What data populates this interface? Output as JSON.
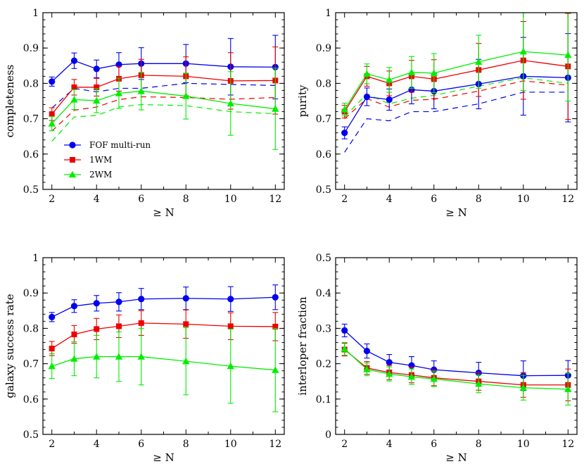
{
  "colors": {
    "fof": "#0000ee",
    "wm1": "#ee0000",
    "wm2": "#00ee00"
  },
  "legend": [
    {
      "name": "FOF multi-run",
      "series": "fof",
      "marker": "circle"
    },
    {
      "name": "1WM",
      "series": "wm1",
      "marker": "square"
    },
    {
      "name": "2WM",
      "series": "wm2",
      "marker": "triangle"
    }
  ],
  "chart_data": [
    {
      "type": "line",
      "title": "",
      "xlabel": "≥ N",
      "ylabel": "completeness",
      "xlim": [
        1.6,
        12.4
      ],
      "ylim": [
        0.5,
        1.0
      ],
      "x_ticks": [
        2,
        4,
        6,
        8,
        10,
        12
      ],
      "y_ticks": [
        0.5,
        0.6,
        0.7,
        0.8,
        0.9,
        1.0
      ],
      "y_tick_labels": [
        "0.5",
        "0.6",
        "0.7",
        "0.8",
        "0.9",
        "1"
      ],
      "x": [
        2,
        3,
        4,
        5,
        6,
        8,
        10,
        12
      ],
      "series": [
        {
          "name": "FOF multi-run",
          "key": "fof",
          "values": [
            0.805,
            0.864,
            0.841,
            0.853,
            0.856,
            0.856,
            0.847,
            0.846
          ],
          "err": [
            0.013,
            0.022,
            0.025,
            0.034,
            0.045,
            0.054,
            0.08,
            0.09
          ]
        },
        {
          "name": "1WM",
          "key": "wm1",
          "values": [
            0.713,
            0.789,
            0.789,
            0.813,
            0.823,
            0.82,
            0.807,
            0.808
          ],
          "err": [
            0.018,
            0.022,
            0.025,
            0.035,
            0.045,
            0.055,
            0.08,
            0.095
          ]
        },
        {
          "name": "2WM",
          "key": "wm2",
          "values": [
            0.686,
            0.754,
            0.751,
            0.772,
            0.778,
            0.764,
            0.743,
            0.728
          ],
          "err": [
            0.02,
            0.028,
            0.034,
            0.043,
            0.053,
            0.065,
            0.09,
            0.115
          ]
        }
      ],
      "dashed": [
        {
          "key": "fof",
          "values": [
            0.73,
            0.786,
            0.776,
            0.786,
            0.786,
            0.8,
            0.797,
            0.794
          ]
        },
        {
          "key": "wm1",
          "values": [
            0.665,
            0.724,
            0.733,
            0.754,
            0.762,
            0.76,
            0.755,
            0.76
          ]
        },
        {
          "key": "wm2",
          "values": [
            0.636,
            0.705,
            0.709,
            0.733,
            0.74,
            0.737,
            0.72,
            0.714
          ]
        }
      ],
      "legend_position": "lower-left"
    },
    {
      "type": "line",
      "title": "",
      "xlabel": "≥ N",
      "ylabel": "purity",
      "xlim": [
        1.6,
        12.4
      ],
      "ylim": [
        0.5,
        1.0
      ],
      "x_ticks": [
        2,
        4,
        6,
        8,
        10,
        12
      ],
      "y_ticks": [
        0.5,
        0.6,
        0.7,
        0.8,
        0.9,
        1.0
      ],
      "y_tick_labels": [
        "0.5",
        "0.6",
        "0.7",
        "0.8",
        "0.9",
        "1"
      ],
      "x": [
        2,
        3,
        4,
        5,
        6,
        8,
        10,
        12
      ],
      "series": [
        {
          "name": "FOF multi-run",
          "key": "fof",
          "values": [
            0.66,
            0.762,
            0.754,
            0.782,
            0.778,
            0.798,
            0.82,
            0.816
          ],
          "err": [
            0.017,
            0.025,
            0.03,
            0.04,
            0.05,
            0.07,
            0.11,
            0.125
          ]
        },
        {
          "name": "1WM",
          "key": "wm1",
          "values": [
            0.72,
            0.82,
            0.8,
            0.82,
            0.812,
            0.838,
            0.865,
            0.848
          ],
          "err": [
            0.018,
            0.028,
            0.035,
            0.045,
            0.055,
            0.075,
            0.11,
            0.15
          ]
        },
        {
          "name": "2WM",
          "key": "wm2",
          "values": [
            0.726,
            0.827,
            0.81,
            0.831,
            0.829,
            0.861,
            0.89,
            0.88
          ],
          "err": [
            0.018,
            0.028,
            0.035,
            0.045,
            0.055,
            0.075,
            0.11,
            0.13
          ]
        }
      ],
      "dashed": [
        {
          "key": "fof",
          "values": [
            0.605,
            0.7,
            0.694,
            0.72,
            0.72,
            0.742,
            0.775,
            0.775
          ]
        },
        {
          "key": "wm1",
          "values": [
            0.7,
            0.757,
            0.733,
            0.752,
            0.755,
            0.778,
            0.807,
            0.795
          ]
        },
        {
          "key": "wm2",
          "values": [
            0.705,
            0.77,
            0.742,
            0.758,
            0.766,
            0.792,
            0.816,
            0.8
          ]
        }
      ]
    },
    {
      "type": "line",
      "title": "",
      "xlabel": "≥ N",
      "ylabel": "galaxy success rate",
      "xlim": [
        1.6,
        12.4
      ],
      "ylim": [
        0.5,
        1.0
      ],
      "x_ticks": [
        2,
        4,
        6,
        8,
        10,
        12
      ],
      "y_ticks": [
        0.5,
        0.6,
        0.7,
        0.8,
        0.9,
        1.0
      ],
      "y_tick_labels": [
        "0.5",
        "0.6",
        "0.7",
        "0.8",
        "0.9",
        "1"
      ],
      "x": [
        2,
        3,
        4,
        5,
        6,
        8,
        10,
        12
      ],
      "series": [
        {
          "name": "FOF multi-run",
          "key": "fof",
          "values": [
            0.832,
            0.863,
            0.871,
            0.875,
            0.883,
            0.885,
            0.883,
            0.888
          ],
          "err": [
            0.013,
            0.018,
            0.022,
            0.026,
            0.03,
            0.032,
            0.035,
            0.035
          ]
        },
        {
          "name": "1WM",
          "key": "wm1",
          "values": [
            0.743,
            0.783,
            0.798,
            0.806,
            0.815,
            0.812,
            0.806,
            0.805
          ],
          "err": [
            0.02,
            0.025,
            0.03,
            0.032,
            0.035,
            0.04,
            0.038,
            0.04
          ]
        },
        {
          "name": "2WM",
          "key": "wm2",
          "values": [
            0.693,
            0.714,
            0.72,
            0.72,
            0.72,
            0.707,
            0.693,
            0.682
          ],
          "err": [
            0.035,
            0.048,
            0.06,
            0.07,
            0.08,
            0.095,
            0.105,
            0.118
          ]
        }
      ]
    },
    {
      "type": "line",
      "title": "",
      "xlabel": "≥ N",
      "ylabel": "interloper fraction",
      "xlim": [
        1.6,
        12.4
      ],
      "ylim": [
        0.0,
        0.5
      ],
      "x_ticks": [
        2,
        4,
        6,
        8,
        10,
        12
      ],
      "y_ticks": [
        0.0,
        0.1,
        0.2,
        0.3,
        0.4,
        0.5
      ],
      "y_tick_labels": [
        "0",
        "0.1",
        "0.2",
        "0.3",
        "0.4",
        "0.5"
      ],
      "x": [
        2,
        3,
        4,
        5,
        6,
        8,
        10,
        12
      ],
      "series": [
        {
          "name": "FOF multi-run",
          "key": "fof",
          "values": [
            0.294,
            0.236,
            0.204,
            0.195,
            0.183,
            0.174,
            0.166,
            0.167
          ],
          "err": [
            0.018,
            0.02,
            0.022,
            0.025,
            0.025,
            0.03,
            0.042,
            0.042
          ]
        },
        {
          "name": "1WM",
          "key": "wm1",
          "values": [
            0.24,
            0.188,
            0.175,
            0.168,
            0.16,
            0.15,
            0.14,
            0.14
          ],
          "err": [
            0.018,
            0.018,
            0.02,
            0.022,
            0.022,
            0.025,
            0.035,
            0.045
          ]
        },
        {
          "name": "2WM",
          "key": "wm2",
          "values": [
            0.242,
            0.184,
            0.171,
            0.163,
            0.157,
            0.143,
            0.132,
            0.128
          ],
          "err": [
            0.018,
            0.018,
            0.02,
            0.022,
            0.022,
            0.025,
            0.035,
            0.045
          ]
        }
      ]
    }
  ]
}
